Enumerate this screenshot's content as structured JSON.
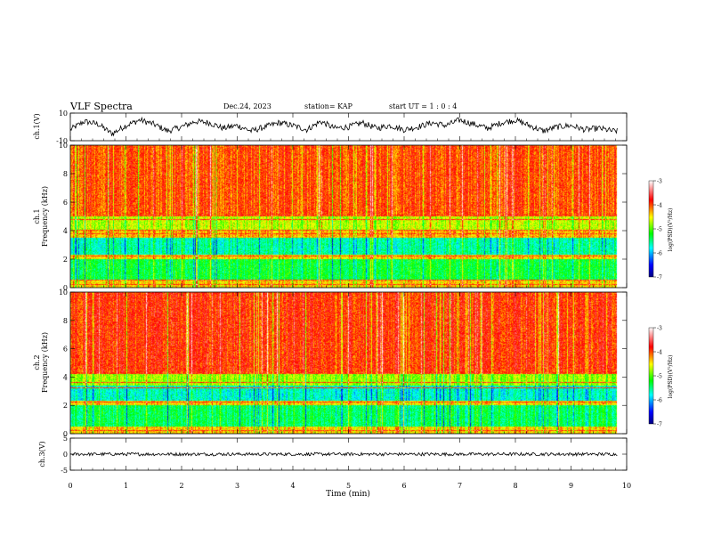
{
  "header": {
    "title": "VLF Spectra",
    "date": "Dec.24, 2023",
    "station": "station= KAP",
    "start_ut": "start UT =  1 : 0  : 4"
  },
  "chart_data": [
    {
      "type": "line",
      "panel": "ch1-waveform",
      "ylabel": "ch.1(V)",
      "ylim": [
        -10,
        10
      ],
      "yticks": [
        "10",
        "-10"
      ],
      "xlim": [
        0,
        10
      ],
      "data_extent_min": 9.83,
      "x": [
        0,
        0.25,
        0.5,
        0.75,
        1,
        1.25,
        1.5,
        1.75,
        2,
        2.25,
        2.5,
        2.75,
        3,
        3.25,
        3.5,
        3.75,
        4,
        4.25,
        4.5,
        4.75,
        5,
        5.25,
        5.5,
        5.75,
        6,
        6.25,
        6.5,
        6.75,
        7,
        7.25,
        7.5,
        7.75,
        8,
        8.25,
        8.5,
        8.75,
        9,
        9.25,
        9.5,
        9.75,
        9.83
      ],
      "y": [
        -2,
        4,
        2,
        -5,
        1,
        5,
        2,
        -3,
        0,
        4,
        3,
        -1,
        1,
        -3,
        0,
        3,
        1,
        -2,
        4,
        -1,
        0,
        3,
        -1,
        1,
        -2,
        0,
        3,
        1,
        5,
        2,
        -1,
        3,
        5,
        1,
        -3,
        0,
        1,
        -2,
        -1,
        -3,
        -3
      ],
      "noise_amplitude": 2.2
    },
    {
      "type": "heatmap",
      "panel": "ch1-spectrogram",
      "ylabel": "ch.1\nFrequency (kHz)",
      "ylim": [
        0,
        10
      ],
      "yticks": [
        "0",
        "2",
        "4",
        "6",
        "8",
        "10"
      ],
      "xlim": [
        0,
        10
      ],
      "data_extent_min": 9.83,
      "band_profile_khz": [
        {
          "from": 0.0,
          "to": 0.5,
          "log_psd": -4.4
        },
        {
          "from": 0.5,
          "to": 2.0,
          "log_psd": -5.3
        },
        {
          "from": 2.0,
          "to": 2.3,
          "log_psd": -4.4
        },
        {
          "from": 2.3,
          "to": 3.5,
          "log_psd": -5.6
        },
        {
          "from": 3.5,
          "to": 4.0,
          "log_psd": -4.3
        },
        {
          "from": 4.0,
          "to": 5.0,
          "log_psd": -4.7
        },
        {
          "from": 5.0,
          "to": 10.0,
          "log_psd": -4.0
        }
      ],
      "narrowband_lines_khz": [
        0.2,
        0.5,
        2.2,
        3.8,
        4.0,
        4.8,
        5.1
      ]
    },
    {
      "type": "heatmap",
      "panel": "ch2-spectrogram",
      "ylabel": "ch.2\nFrequency (kHz)",
      "ylim": [
        0,
        10
      ],
      "yticks": [
        "0",
        "2",
        "4",
        "6",
        "8",
        "10"
      ],
      "xlim": [
        0,
        10
      ],
      "data_extent_min": 9.83,
      "band_profile_khz": [
        {
          "from": 0.0,
          "to": 0.5,
          "log_psd": -4.4
        },
        {
          "from": 0.5,
          "to": 2.0,
          "log_psd": -5.4
        },
        {
          "from": 2.0,
          "to": 2.3,
          "log_psd": -4.4
        },
        {
          "from": 2.3,
          "to": 3.4,
          "log_psd": -5.7
        },
        {
          "from": 3.4,
          "to": 4.2,
          "log_psd": -4.8
        },
        {
          "from": 4.2,
          "to": 10.0,
          "log_psd": -3.9
        }
      ],
      "narrowband_lines_khz": [
        0.2,
        2.2,
        3.2,
        3.6
      ]
    },
    {
      "type": "line",
      "panel": "ch3-waveform",
      "ylabel": "ch.3(V)",
      "ylim": [
        -5,
        5
      ],
      "yticks": [
        "5",
        "0",
        "-5"
      ],
      "xlim": [
        0,
        10
      ],
      "data_extent_min": 9.83,
      "x": [
        0,
        9.83
      ],
      "y": [
        0,
        0
      ],
      "noise_amplitude": 0.5
    }
  ],
  "colorbars": [
    {
      "label": "log(PSD)(V²/Hz)",
      "min": -7,
      "max": -3,
      "ticks": [
        "-3",
        "-4",
        "-5",
        "-6",
        "-7"
      ]
    },
    {
      "label": "log(PSD)(V²/Hz)",
      "min": -7,
      "max": -3,
      "ticks": [
        "-3",
        "-4",
        "-5",
        "-6",
        "-7"
      ]
    }
  ],
  "xaxis": {
    "label": "Time (min)",
    "ticks": [
      "0",
      "1",
      "2",
      "3",
      "4",
      "5",
      "6",
      "7",
      "8",
      "9",
      "10"
    ]
  },
  "colors": {
    "colormap": [
      "#000080",
      "#0000ff",
      "#00ffff",
      "#00ff00",
      "#ffff00",
      "#ff0000",
      "#ffffff"
    ]
  }
}
